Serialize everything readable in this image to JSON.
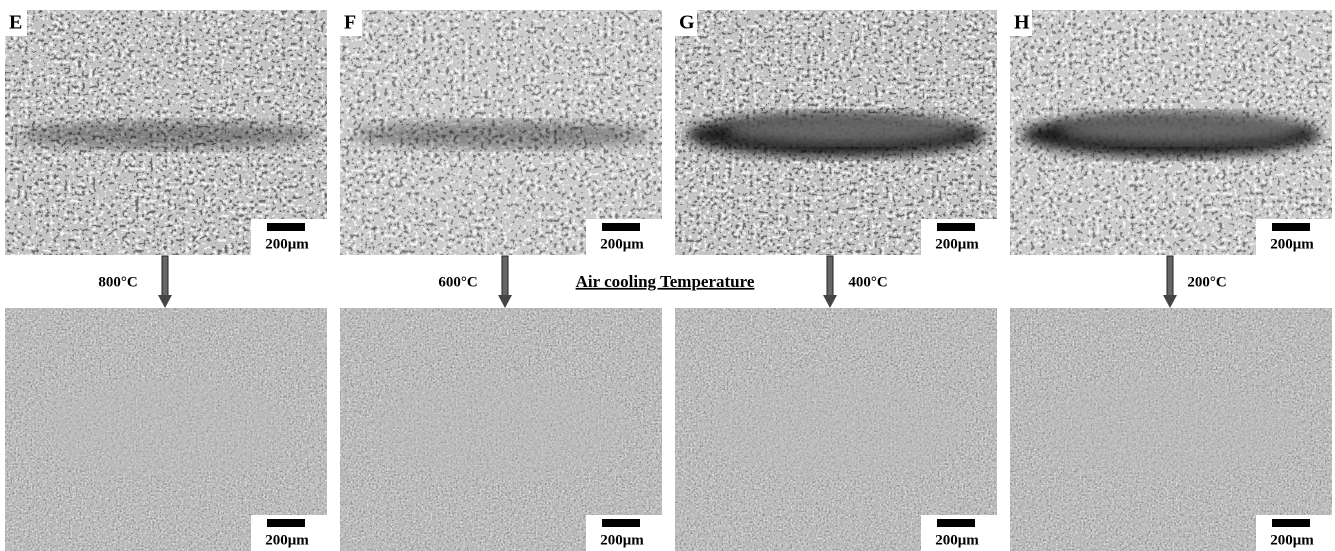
{
  "figure": {
    "center_label": "Air cooling Temperature",
    "panels": [
      {
        "label": "E",
        "temperature": "800°C",
        "top_scale_bar": "200μm",
        "bottom_scale_bar": "200μm"
      },
      {
        "label": "F",
        "temperature": "600°C",
        "top_scale_bar": "200μm",
        "bottom_scale_bar": "200μm"
      },
      {
        "label": "G",
        "temperature": "400°C",
        "top_scale_bar": "200μm",
        "bottom_scale_bar": "200μm"
      },
      {
        "label": "H",
        "temperature": "200°C",
        "top_scale_bar": "200μm",
        "bottom_scale_bar": "200μm"
      }
    ]
  }
}
